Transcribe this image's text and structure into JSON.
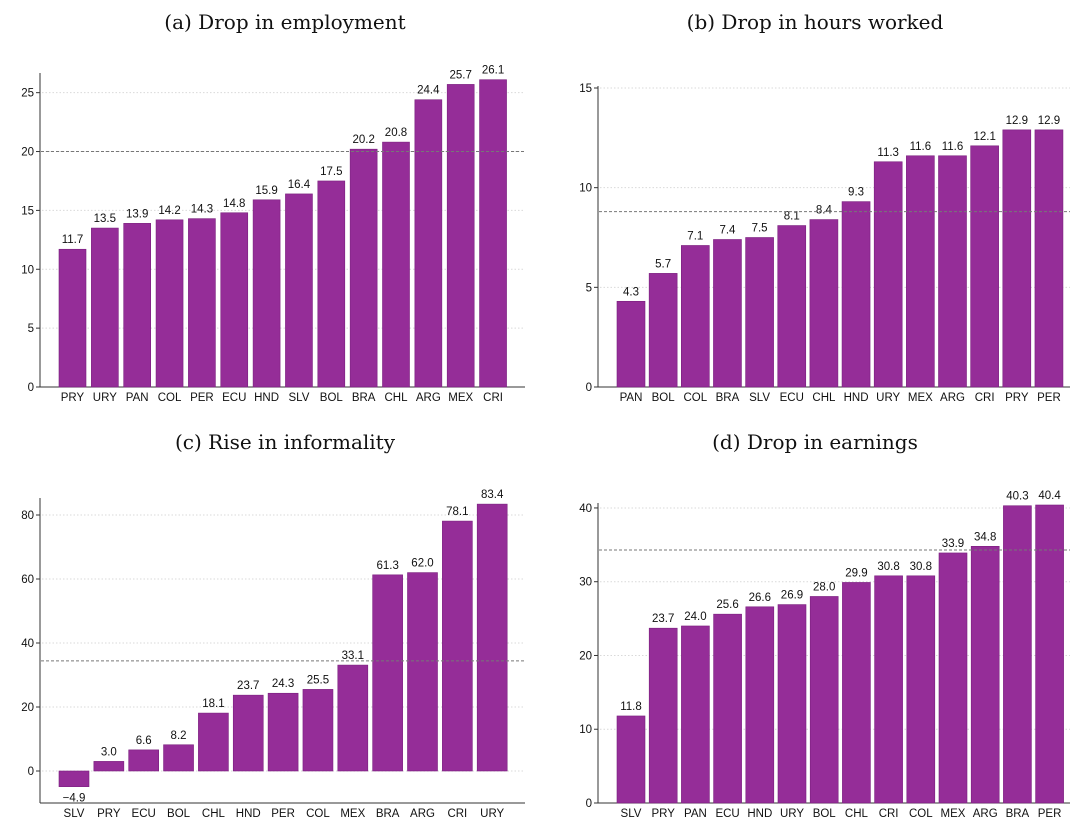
{
  "colors": {
    "bar": "#952d98",
    "grid": "#d9d9d9",
    "ref_line": "#777777",
    "axis": "#333333"
  },
  "chart_data": [
    {
      "type": "bar",
      "title": "(a) Drop in employment",
      "categories": [
        "PRY",
        "URY",
        "PAN",
        "COL",
        "PER",
        "ECU",
        "HND",
        "SLV",
        "BOL",
        "BRA",
        "CHL",
        "ARG",
        "MEX",
        "CRI"
      ],
      "values": [
        11.7,
        13.5,
        13.9,
        14.2,
        14.3,
        14.8,
        15.9,
        16.4,
        17.5,
        20.2,
        20.8,
        24.4,
        25.7,
        26.1
      ],
      "data_labels": [
        "11.7",
        "13.5",
        "13.9",
        "14.2",
        "14.3",
        "14.8",
        "15.9",
        "16.4",
        "17.5",
        "20.2",
        "20.8",
        "24.4",
        "25.7",
        "26.1"
      ],
      "yticks": [
        0,
        5,
        10,
        15,
        20,
        25
      ],
      "ylim": [
        0,
        26.5
      ],
      "reference_line": 20.0,
      "grid": true
    },
    {
      "type": "bar",
      "title": "(b) Drop in hours worked",
      "categories": [
        "PAN",
        "BOL",
        "COL",
        "BRA",
        "SLV",
        "ECU",
        "CHL",
        "HND",
        "URY",
        "MEX",
        "ARG",
        "CRI",
        "PRY",
        "PER"
      ],
      "values": [
        4.3,
        5.7,
        7.1,
        7.4,
        7.5,
        8.1,
        8.4,
        9.3,
        11.3,
        11.6,
        11.6,
        12.1,
        12.9,
        12.9
      ],
      "data_labels": [
        "4.3",
        "5.7",
        "7.1",
        "7.4",
        "7.5",
        "8.1",
        "8.4",
        "9.3",
        "11.3",
        "11.6",
        "11.6",
        "12.1",
        "12.9",
        "12.9"
      ],
      "yticks": [
        0,
        5,
        10,
        15
      ],
      "ylim": [
        0,
        15
      ],
      "reference_line": 8.8,
      "grid": true
    },
    {
      "type": "bar",
      "title": "(c) Rise in informality",
      "categories": [
        "SLV",
        "PRY",
        "ECU",
        "BOL",
        "CHL",
        "HND",
        "PER",
        "COL",
        "MEX",
        "BRA",
        "ARG",
        "CRI",
        "URY"
      ],
      "values": [
        -4.9,
        3.0,
        6.6,
        8.2,
        18.1,
        23.7,
        24.3,
        25.5,
        33.1,
        61.3,
        62.0,
        78.1,
        83.4
      ],
      "data_labels": [
        "−4.9",
        "3.0",
        "6.6",
        "8.2",
        "18.1",
        "23.7",
        "24.3",
        "25.5",
        "33.1",
        "61.3",
        "62.0",
        "78.1",
        "83.4"
      ],
      "yticks": [
        0,
        20,
        40,
        60,
        80
      ],
      "ylim": [
        -10,
        84
      ],
      "reference_line": 34.4,
      "grid": true
    },
    {
      "type": "bar",
      "title": "(d) Drop in earnings",
      "categories": [
        "SLV",
        "PRY",
        "PAN",
        "ECU",
        "HND",
        "URY",
        "BOL",
        "CHL",
        "CRI",
        "COL",
        "MEX",
        "ARG",
        "BRA",
        "PER"
      ],
      "values": [
        11.8,
        23.7,
        24.0,
        25.6,
        26.6,
        26.9,
        28.0,
        29.9,
        30.8,
        30.8,
        33.9,
        34.8,
        40.3,
        40.4
      ],
      "data_labels": [
        "11.8",
        "23.7",
        "24.0",
        "25.6",
        "26.6",
        "26.9",
        "28.0",
        "29.9",
        "30.8",
        "30.8",
        "33.9",
        "34.8",
        "40.3",
        "40.4"
      ],
      "yticks": [
        0,
        10,
        20,
        30,
        40
      ],
      "ylim": [
        0,
        40.4
      ],
      "reference_line": 34.3,
      "grid": true
    }
  ]
}
